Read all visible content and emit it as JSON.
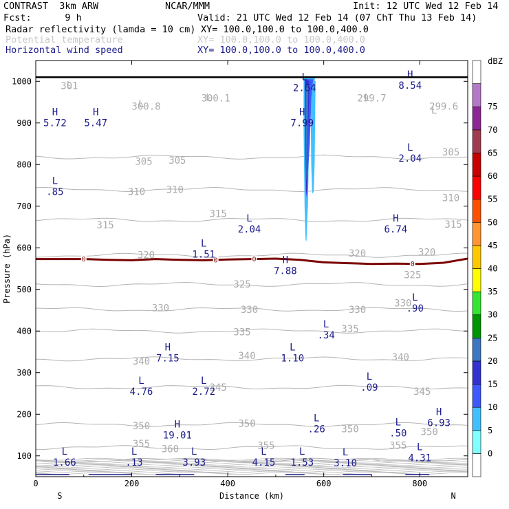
{
  "header": {
    "model": "CONTRAST  3km ARW",
    "center": "NCAR/MMM",
    "init": "Init: 12 UTC Wed 12 Feb 14",
    "fcst": "Fcst:      9 h",
    "valid": "Valid: 21 UTC Wed 12 Feb 14 (07 ChT Thu 13 Feb 14)",
    "fields": [
      {
        "name": "Radar reflectivity (lamda = 10 cm)",
        "xy": "XY= 100.0,100.0 to 100.0,400.0",
        "color": "#000000"
      },
      {
        "name": "Potential temperature",
        "xy": "XY= 100.0,100.0 to 100.0,400.0",
        "color": "#c8c8c8"
      },
      {
        "name": "Horizontal wind speed",
        "xy": "XY= 100.0,100.0 to 100.0,400.0",
        "color": "#1a1a8c"
      }
    ]
  },
  "chart_data": {
    "type": "cross-section",
    "xlabel": "Distance (km)",
    "ylabel": "Pressure (hPa)",
    "xlim": [
      0,
      900
    ],
    "ylim": [
      1050,
      50
    ],
    "x_ticks": [
      0,
      200,
      400,
      600,
      800
    ],
    "y_ticks": [
      100,
      200,
      300,
      400,
      500,
      600,
      700,
      800,
      900,
      1000
    ],
    "x_end_labels": {
      "left": "S",
      "right": "N"
    },
    "colorbar": {
      "unit": "dBZ",
      "ticks": [
        0,
        5,
        10,
        15,
        20,
        25,
        30,
        35,
        40,
        45,
        50,
        55,
        60,
        65,
        70,
        75
      ],
      "colors": [
        "#ffffff",
        "#80ffff",
        "#40c0ff",
        "#3c5aff",
        "#3232d2",
        "#3c78c0",
        "#009600",
        "#32e632",
        "#ffff00",
        "#ffc800",
        "#ff9632",
        "#ff5000",
        "#ff0000",
        "#c80000",
        "#a03c50",
        "#8c2896",
        "#b478c8",
        "#ffffff"
      ]
    },
    "theta_contours": {
      "color": "#b4b4b4",
      "levels": [
        {
          "label": "360",
          "p": 90
        },
        {
          "label": "355",
          "p": 120
        },
        {
          "label": "350",
          "p": 175
        },
        {
          "label": "345",
          "p": 265
        },
        {
          "label": "340",
          "p": 333
        },
        {
          "label": "335",
          "p": 400
        },
        {
          "label": "330",
          "p": 452
        },
        {
          "label": "325",
          "p": 512
        },
        {
          "label": "320",
          "p": 582
        },
        {
          "label": "315",
          "p": 667
        },
        {
          "label": "310",
          "p": 740
        },
        {
          "label": "305",
          "p": 818
        }
      ],
      "labels": [
        {
          "text": "360",
          "x": 280,
          "p": 117
        },
        {
          "text": "355",
          "x": 220,
          "p": 129
        },
        {
          "text": "355",
          "x": 480,
          "p": 125
        },
        {
          "text": "355",
          "x": 755,
          "p": 125
        },
        {
          "text": "350",
          "x": 220,
          "p": 172
        },
        {
          "text": "350",
          "x": 440,
          "p": 178
        },
        {
          "text": "350",
          "x": 655,
          "p": 165
        },
        {
          "text": "350",
          "x": 820,
          "p": 158
        },
        {
          "text": "345",
          "x": 380,
          "p": 265
        },
        {
          "text": "345",
          "x": 805,
          "p": 255
        },
        {
          "text": "340",
          "x": 220,
          "p": 328
        },
        {
          "text": "340",
          "x": 440,
          "p": 341
        },
        {
          "text": "340",
          "x": 760,
          "p": 338
        },
        {
          "text": "335",
          "x": 430,
          "p": 398
        },
        {
          "text": "335",
          "x": 655,
          "p": 405
        },
        {
          "text": "330",
          "x": 260,
          "p": 456
        },
        {
          "text": "330",
          "x": 445,
          "p": 452
        },
        {
          "text": "330",
          "x": 670,
          "p": 452
        },
        {
          "text": "330",
          "x": 765,
          "p": 467
        },
        {
          "text": "325",
          "x": 430,
          "p": 513
        },
        {
          "text": "325",
          "x": 785,
          "p": 535
        },
        {
          "text": "320",
          "x": 230,
          "p": 583
        },
        {
          "text": "320",
          "x": 670,
          "p": 587
        },
        {
          "text": "320",
          "x": 815,
          "p": 590
        },
        {
          "text": "315",
          "x": 145,
          "p": 655
        },
        {
          "text": "315",
          "x": 380,
          "p": 682
        },
        {
          "text": "315",
          "x": 870,
          "p": 657
        },
        {
          "text": "310",
          "x": 210,
          "p": 735
        },
        {
          "text": "310",
          "x": 290,
          "p": 740
        },
        {
          "text": "310",
          "x": 865,
          "p": 720
        },
        {
          "text": "305",
          "x": 225,
          "p": 808
        },
        {
          "text": "305",
          "x": 295,
          "p": 810
        },
        {
          "text": "305",
          "x": 865,
          "p": 830
        },
        {
          "text": "300.8",
          "x": 230,
          "p": 940
        },
        {
          "text": "301",
          "x": 70,
          "p": 990
        },
        {
          "text": "300.1",
          "x": 375,
          "p": 960
        },
        {
          "text": "299.7",
          "x": 700,
          "p": 960
        },
        {
          "text": "299.6",
          "x": 850,
          "p": 940
        }
      ],
      "extrema": [
        {
          "type": "L",
          "x": 220,
          "p": 915
        },
        {
          "type": "L",
          "x": 70,
          "p": 960
        },
        {
          "type": "L",
          "x": 360,
          "p": 930
        },
        {
          "type": "L",
          "x": 690,
          "p": 930
        },
        {
          "type": "L",
          "x": 830,
          "p": 900
        }
      ]
    },
    "zero_isotherm": {
      "color": "#7a0000",
      "label": "0",
      "points": [
        [
          0,
          573
        ],
        [
          50,
          573
        ],
        [
          100,
          573
        ],
        [
          150,
          571
        ],
        [
          200,
          570
        ],
        [
          250,
          573
        ],
        [
          300,
          571
        ],
        [
          350,
          570
        ],
        [
          400,
          572
        ],
        [
          450,
          573
        ],
        [
          500,
          574
        ],
        [
          550,
          571
        ],
        [
          600,
          565
        ],
        [
          650,
          563
        ],
        [
          700,
          561
        ],
        [
          750,
          562
        ],
        [
          800,
          561
        ],
        [
          850,
          564
        ],
        [
          900,
          574
        ]
      ],
      "label_x": [
        100,
        375,
        455,
        785
      ]
    },
    "wind_speed_extrema": [
      {
        "type": "L",
        "value": "1.66",
        "x": 60,
        "p": 100
      },
      {
        "type": "L",
        "value": ".13",
        "x": 205,
        "p": 100
      },
      {
        "type": "L",
        "value": "3.93",
        "x": 330,
        "p": 100
      },
      {
        "type": "L",
        "value": "4.15",
        "x": 475,
        "p": 100
      },
      {
        "type": "L",
        "value": "1.53",
        "x": 555,
        "p": 100
      },
      {
        "type": "L",
        "value": "3.10",
        "x": 645,
        "p": 98
      },
      {
        "type": "L",
        "value": "4.31",
        "x": 800,
        "p": 110
      },
      {
        "type": "H",
        "value": "19.01",
        "x": 295,
        "p": 165
      },
      {
        "type": "L",
        "value": ".26",
        "x": 585,
        "p": 180
      },
      {
        "type": "L",
        "value": ".50",
        "x": 755,
        "p": 170
      },
      {
        "type": "H",
        "value": "6.93",
        "x": 840,
        "p": 195
      },
      {
        "type": "L",
        "value": "4.76",
        "x": 220,
        "p": 270
      },
      {
        "type": "L",
        "value": "2.72",
        "x": 350,
        "p": 270
      },
      {
        "type": "L",
        "value": ".09",
        "x": 695,
        "p": 280
      },
      {
        "type": "H",
        "value": "7.15",
        "x": 275,
        "p": 350
      },
      {
        "type": "L",
        "value": "1.10",
        "x": 535,
        "p": 350
      },
      {
        "type": "L",
        "value": ".34",
        "x": 605,
        "p": 405
      },
      {
        "type": "L",
        "value": ".90",
        "x": 790,
        "p": 470
      },
      {
        "type": "H",
        "value": "7.88",
        "x": 520,
        "p": 560
      },
      {
        "type": "L",
        "value": "1.51",
        "x": 350,
        "p": 600
      },
      {
        "type": "L",
        "value": "2.04",
        "x": 445,
        "p": 660
      },
      {
        "type": "H",
        "value": "6.74",
        "x": 750,
        "p": 660
      },
      {
        "type": "L",
        "value": ".85",
        "x": 40,
        "p": 750
      },
      {
        "type": "L",
        "value": "2.04",
        "x": 780,
        "p": 830
      },
      {
        "type": "H",
        "value": "5.72",
        "x": 40,
        "p": 915
      },
      {
        "type": "H",
        "value": "5.47",
        "x": 125,
        "p": 915
      },
      {
        "type": "H",
        "value": "7.99",
        "x": 555,
        "p": 915
      },
      {
        "type": "L",
        "value": "2.64",
        "x": 560,
        "p": 1000
      },
      {
        "type": "H",
        "value": "8.54",
        "x": 780,
        "p": 1005
      }
    ],
    "reflectivity_cells": [
      {
        "dbz": 5,
        "polygon": [
          [
            558,
            1010
          ],
          [
            558,
            880
          ],
          [
            560,
            700
          ],
          [
            562,
            620
          ],
          [
            564,
            615
          ],
          [
            567,
            700
          ],
          [
            570,
            880
          ],
          [
            576,
            960
          ],
          [
            582,
            1010
          ]
        ]
      },
      {
        "dbz": 5,
        "polygon": [
          [
            572,
            1010
          ],
          [
            574,
            800
          ],
          [
            576,
            730
          ],
          [
            579,
            735
          ],
          [
            581,
            800
          ],
          [
            583,
            1000
          ]
        ]
      },
      {
        "dbz": 10,
        "polygon": [
          [
            560,
            1005
          ],
          [
            561,
            850
          ],
          [
            563,
            730
          ],
          [
            565,
            720
          ],
          [
            567,
            780
          ],
          [
            571,
            850
          ],
          [
            574,
            960
          ],
          [
            578,
            1005
          ]
        ]
      },
      {
        "dbz": 15,
        "polygon": [
          [
            561,
            1005
          ],
          [
            562,
            880
          ],
          [
            563,
            730
          ],
          [
            566,
            740
          ],
          [
            568,
            880
          ],
          [
            570,
            1000
          ]
        ]
      },
      {
        "dbz": 20,
        "polygon": [
          [
            562,
            990
          ],
          [
            563,
            900
          ],
          [
            564,
            760
          ],
          [
            566,
            780
          ],
          [
            567,
            900
          ],
          [
            568,
            990
          ]
        ]
      }
    ]
  }
}
